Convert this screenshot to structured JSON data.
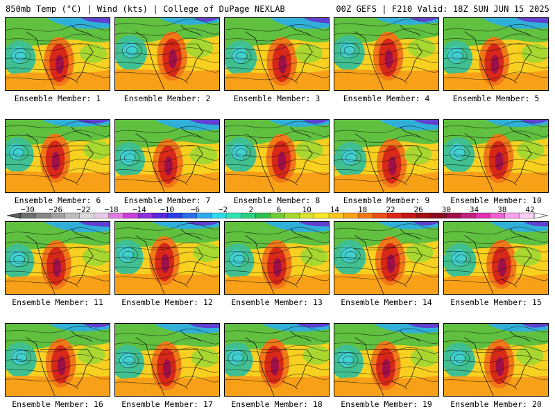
{
  "header": {
    "left": "850mb Temp (°C) | Wind (kts) | College of DuPage NEXLAB",
    "right": "00Z GEFS | F210 Valid: 18Z SUN JUN 15 2025"
  },
  "colorbar": {
    "labels": [
      "−30",
      "−26",
      "−22",
      "−18",
      "−14",
      "−10",
      "−6",
      "−2",
      "2",
      "6",
      "10",
      "14",
      "18",
      "22",
      "26",
      "30",
      "34",
      "38",
      "42"
    ],
    "colors": [
      "#6e6e6e",
      "#878787",
      "#a0a0a0",
      "#bdbdbd",
      "#dadada",
      "#e8c8e8",
      "#e07ae0",
      "#c840d8",
      "#8c30d8",
      "#5828d8",
      "#2a40e0",
      "#2a70e8",
      "#30a8f0",
      "#30d8e8",
      "#30e0b0",
      "#2ad080",
      "#30c050",
      "#70cc38",
      "#a8d830",
      "#d8e030",
      "#f8e828",
      "#f8c820",
      "#f8a018",
      "#f07818",
      "#e85018",
      "#d82818",
      "#c01818",
      "#a01010",
      "#880c20",
      "#a01048",
      "#c02080",
      "#e030b0",
      "#f060d0",
      "#f8a0e8",
      "#fcd0f4"
    ]
  },
  "members": [
    {
      "label": "Ensemble Member: 1"
    },
    {
      "label": "Ensemble Member: 2"
    },
    {
      "label": "Ensemble Member: 3"
    },
    {
      "label": "Ensemble Member: 4"
    },
    {
      "label": "Ensemble Member: 5"
    },
    {
      "label": "Ensemble Member: 6"
    },
    {
      "label": "Ensemble Member: 7"
    },
    {
      "label": "Ensemble Member: 8"
    },
    {
      "label": "Ensemble Member: 9"
    },
    {
      "label": "Ensemble Member: 10"
    },
    {
      "label": "Ensemble Member: 11"
    },
    {
      "label": "Ensemble Member: 12"
    },
    {
      "label": "Ensemble Member: 13"
    },
    {
      "label": "Ensemble Member: 14"
    },
    {
      "label": "Ensemble Member: 15"
    },
    {
      "label": "Ensemble Member: 16"
    },
    {
      "label": "Ensemble Member: 17"
    },
    {
      "label": "Ensemble Member: 18"
    },
    {
      "label": "Ensemble Member: 19"
    },
    {
      "label": "Ensemble Member: 20"
    }
  ]
}
